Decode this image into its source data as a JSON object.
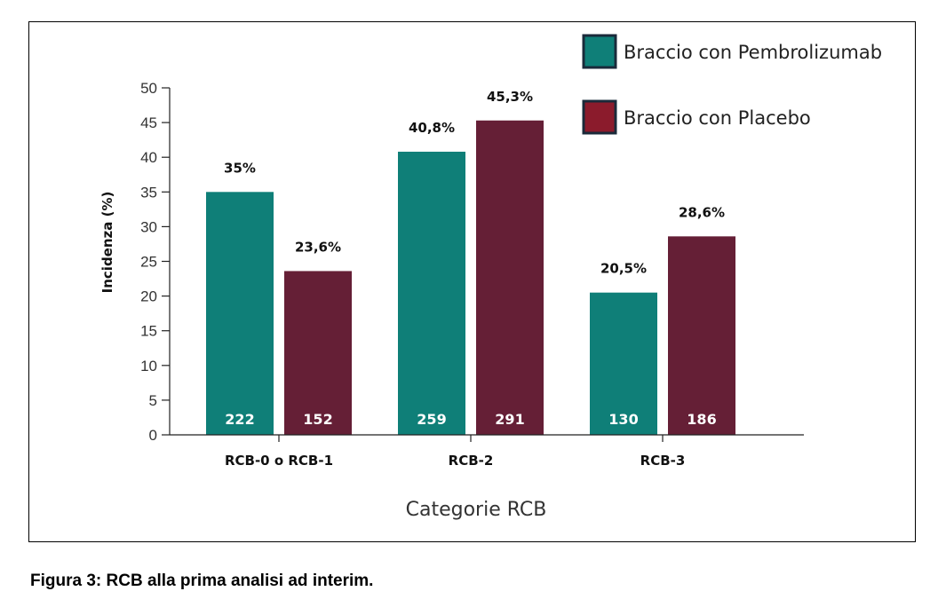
{
  "chart_data": {
    "type": "bar",
    "categories": [
      "RCB-0 o RCB-1",
      "RCB-2",
      "RCB-3"
    ],
    "series": [
      {
        "name": "Braccio con Pembrolizumab",
        "color": "#0f7f78",
        "values": [
          35,
          40.8,
          20.5
        ],
        "value_labels": [
          "35%",
          "40,8%",
          "20,5%"
        ],
        "counts": [
          "222",
          "259",
          "130"
        ]
      },
      {
        "name": "Braccio con Placebo",
        "color": "#651f36",
        "legend_color": "#8b1b2c",
        "values": [
          23.6,
          45.3,
          28.6
        ],
        "value_labels": [
          "23,6%",
          "45,3%",
          "28,6%"
        ],
        "counts": [
          "152",
          "291",
          "186"
        ]
      }
    ],
    "title": "",
    "xlabel": "Categorie RCB",
    "ylabel": "Incidenza (%)",
    "ylim": [
      0,
      50
    ],
    "yticks": [
      0,
      5,
      10,
      15,
      20,
      25,
      30,
      35,
      40,
      45,
      50
    ],
    "grid": false,
    "legend_position": "top-right"
  },
  "caption": "Figura 3: RCB alla prima analisi ad interim."
}
